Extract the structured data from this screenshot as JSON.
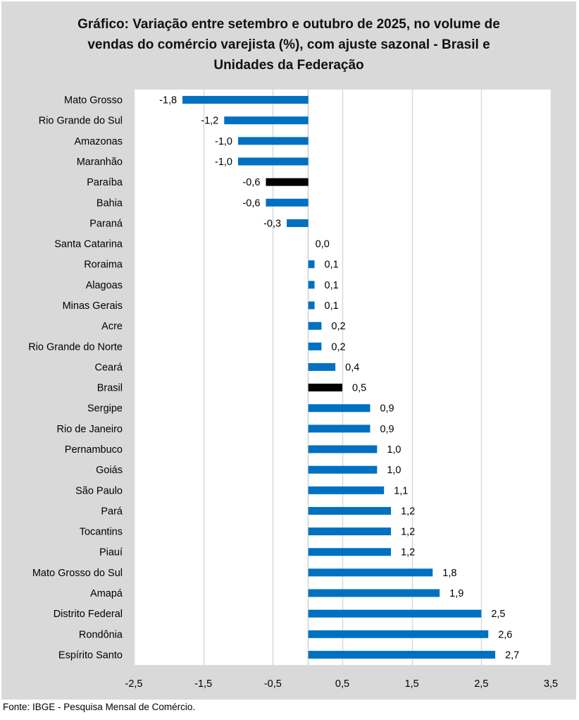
{
  "chart_data": {
    "type": "bar",
    "orientation": "horizontal",
    "title_lines": [
      "Gráfico: Variação entre setembro e outubro de 2025, no volume de",
      "vendas do comércio varejista (%), com ajuste sazonal - Brasil e",
      "Unidades da Federação"
    ],
    "xlabel": "",
    "ylabel": "",
    "xlim": [
      -2.5,
      3.5
    ],
    "xticks": [
      -2.5,
      -1.5,
      -0.5,
      0.5,
      1.5,
      2.5,
      3.5
    ],
    "xtick_labels": [
      "-2,5",
      "-1,5",
      "-0,5",
      "0,5",
      "1,5",
      "2,5",
      "3,5"
    ],
    "grid": true,
    "legend": "none",
    "colors": {
      "default": "#0070C0",
      "highlight": "#000000"
    },
    "categories": [
      "Mato Grosso",
      "Rio Grande do Sul",
      "Amazonas",
      "Maranhão",
      "Paraíba",
      "Bahia",
      "Paraná",
      "Santa Catarina",
      "Roraima",
      "Alagoas",
      "Minas Gerais",
      "Acre",
      "Rio Grande do Norte",
      "Ceará",
      "Brasil",
      "Sergipe",
      "Rio de Janeiro",
      "Pernambuco",
      "Goiás",
      "São Paulo",
      "Pará",
      "Tocantins",
      "Piauí",
      "Mato Grosso do Sul",
      "Amapá",
      "Distrito Federal",
      "Rondônia",
      "Espírito Santo"
    ],
    "values": [
      -1.8,
      -1.2,
      -1.0,
      -1.0,
      -0.6,
      -0.6,
      -0.3,
      0.0,
      0.1,
      0.1,
      0.1,
      0.2,
      0.2,
      0.4,
      0.5,
      0.9,
      0.9,
      1.0,
      1.0,
      1.1,
      1.2,
      1.2,
      1.2,
      1.8,
      1.9,
      2.5,
      2.6,
      2.7
    ],
    "value_labels": [
      "-1,8",
      "-1,2",
      "-1,0",
      "-1,0",
      "-0,6",
      "-0,6",
      "-0,3",
      "0,0",
      "0,1",
      "0,1",
      "0,1",
      "0,2",
      "0,2",
      "0,4",
      "0,5",
      "0,9",
      "0,9",
      "1,0",
      "1,0",
      "1,1",
      "1,2",
      "1,2",
      "1,2",
      "1,8",
      "1,9",
      "2,5",
      "2,6",
      "2,7"
    ],
    "highlighted": [
      "Paraíba",
      "Brasil"
    ]
  },
  "footer": "Fonte: IBGE - Pesquisa Mensal de Comércio."
}
